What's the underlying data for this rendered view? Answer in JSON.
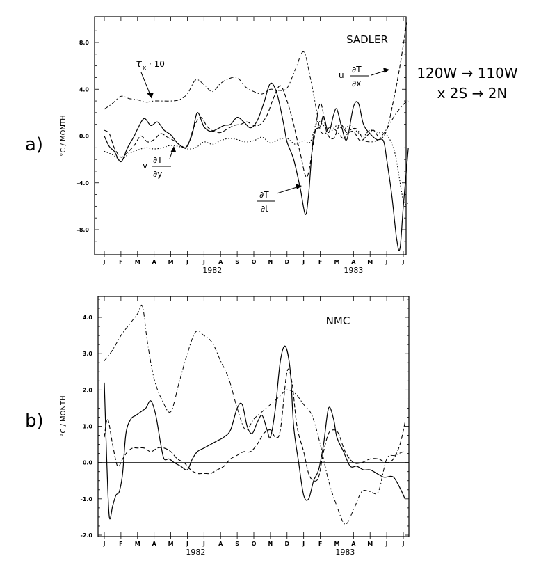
{
  "region_label": {
    "line1": "120W → 110W",
    "line2": "x 2S → 2N"
  },
  "chart_data": [
    {
      "type": "line",
      "panel_label": "a)",
      "title": "SADLER",
      "ylabel": "°C / MONTH",
      "xlabel": "",
      "ylim": [
        -10,
        10
      ],
      "y_ticks": [
        -8,
        -4,
        0,
        4,
        8
      ],
      "y_tick_labels": [
        "-8.0",
        "-4.0",
        "0.0",
        "4.0",
        "8.0"
      ],
      "x_ticks": [
        "J",
        "F",
        "M",
        "A",
        "M",
        "J",
        "J",
        "A",
        "S",
        "O",
        "N",
        "D",
        "J",
        "F",
        "M",
        "A",
        "M",
        "J",
        "J"
      ],
      "year_labels": [
        {
          "label": "1982",
          "month": 6.5
        },
        {
          "label": "1983",
          "month": 15
        }
      ],
      "zero_line": true,
      "series": [
        {
          "style": "solid",
          "annotation": "∂T/∂t",
          "x": [
            0,
            0.3,
            0.6,
            1,
            1.4,
            1.8,
            2,
            2.4,
            2.8,
            3.2,
            3.6,
            4,
            4.4,
            4.8,
            5,
            5.3,
            5.6,
            6,
            6.4,
            6.8,
            7.2,
            7.6,
            8,
            8.4,
            8.8,
            9.2,
            9.6,
            10,
            10.4,
            10.8,
            11,
            11.4,
            11.8,
            12.1,
            12.3,
            12.6,
            13,
            13.2,
            13.5,
            13.8,
            14,
            14.3,
            14.6,
            15,
            15.3,
            15.6,
            16,
            16.4,
            16.8,
            17,
            17.3,
            17.6,
            17.8,
            18,
            18.3
          ],
          "values": [
            0,
            -0.9,
            -1.3,
            -2.2,
            -1.0,
            0,
            0.6,
            1.5,
            0.9,
            1.2,
            0.5,
            0.1,
            -0.6,
            -1.0,
            -0.8,
            0.2,
            2.0,
            0.8,
            0.4,
            0.6,
            0.9,
            1.0,
            1.6,
            1.2,
            0.7,
            1.3,
            2.8,
            4.5,
            3.6,
            1.0,
            -0.5,
            -2.0,
            -4.5,
            -6.7,
            -5.0,
            0,
            0.8,
            1.7,
            0.3,
            1.8,
            2.3,
            0.7,
            -0.3,
            2.5,
            2.8,
            1.0,
            0.2,
            -0.3,
            -0.4,
            -2.0,
            -5.0,
            -8.8,
            -9.6,
            -6.0,
            -1.0
          ]
        },
        {
          "style": "dash",
          "annotation": "u ∂T/∂x",
          "x": [
            0,
            0.3,
            0.6,
            1,
            1.4,
            1.8,
            2.2,
            2.6,
            3,
            3.4,
            3.8,
            4.2,
            4.6,
            5,
            5.4,
            5.8,
            6.2,
            6.6,
            7,
            7.4,
            7.8,
            8.2,
            8.6,
            9,
            9.4,
            9.8,
            10.2,
            10.6,
            11,
            11.4,
            11.8,
            12.2,
            12.6,
            13,
            13.4,
            13.8,
            14.2,
            14.6,
            15,
            15.4,
            15.8,
            16.2,
            16.6,
            17,
            17.4,
            17.8,
            18.2
          ],
          "values": [
            0.5,
            0.2,
            -1.0,
            -1.8,
            -1.4,
            -0.8,
            0,
            -0.5,
            -0.3,
            0.2,
            -0.1,
            -0.4,
            -0.8,
            -0.9,
            0.8,
            1.6,
            0.8,
            0.4,
            0.3,
            0.6,
            0.9,
            1.0,
            1.2,
            0.9,
            1.0,
            1.8,
            3.3,
            4.3,
            3.0,
            1.0,
            -1.5,
            -3.5,
            -0.5,
            2.8,
            0.3,
            -0.2,
            1.0,
            0.3,
            0.4,
            -0.4,
            0,
            0.5,
            -0.2,
            0.5,
            3.0,
            6.0,
            9.7
          ]
        },
        {
          "style": "dashdot",
          "annotation": "τx · 10",
          "x": [
            0,
            0.5,
            1,
            1.5,
            2,
            2.5,
            3,
            3.5,
            4,
            4.5,
            5,
            5.5,
            6,
            6.5,
            7,
            7.5,
            8,
            8.5,
            9,
            9.5,
            10,
            10.5,
            11,
            11.5,
            12,
            12.4,
            12.8,
            13,
            13.3,
            13.6,
            14,
            14.4,
            14.8,
            15.2,
            15.6,
            16,
            16.5,
            17,
            17.5,
            18,
            18.3
          ],
          "values": [
            2.3,
            2.8,
            3.4,
            3.2,
            3.1,
            2.9,
            3.0,
            3.0,
            3.0,
            3.1,
            3.6,
            4.8,
            4.4,
            3.8,
            4.5,
            4.9,
            5.0,
            4.2,
            3.8,
            3.6,
            4.0,
            3.9,
            4.1,
            5.7,
            7.2,
            5.0,
            2.0,
            0.5,
            0.2,
            0.8,
            0.4,
            -0.2,
            0.5,
            0.6,
            -0.3,
            -0.5,
            -0.3,
            0.6,
            1.8,
            2.7,
            3.0
          ]
        },
        {
          "style": "dot",
          "annotation": "v ∂T/∂y",
          "x": [
            0,
            0.5,
            1,
            1.5,
            2,
            2.5,
            3,
            3.5,
            4,
            4.5,
            5,
            5.5,
            6,
            6.5,
            7,
            7.5,
            8,
            8.5,
            9,
            9.5,
            10,
            10.5,
            11,
            11.5,
            12,
            12.4,
            12.8,
            13.2,
            13.6,
            14,
            14.4,
            14.8,
            15.2,
            15.6,
            16,
            16.5,
            17,
            17.5,
            18,
            18.3
          ],
          "values": [
            -1.3,
            -1.6,
            -2.0,
            -1.5,
            -1.2,
            -1.0,
            -1.1,
            -1.0,
            -0.8,
            -0.9,
            -1.1,
            -1.0,
            -0.5,
            -0.7,
            -0.4,
            -0.2,
            -0.3,
            -0.5,
            -0.4,
            -0.1,
            -0.6,
            -0.3,
            -0.2,
            -0.7,
            -0.4,
            -0.5,
            1.2,
            0.9,
            0.4,
            0.9,
            0.6,
            0.9,
            0.4,
            0,
            0.5,
            0.3,
            0.1,
            -1.5,
            -5.5,
            -5.7
          ]
        }
      ]
    },
    {
      "type": "line",
      "panel_label": "b)",
      "title": "NMC",
      "ylabel": "°C / MONTH",
      "xlabel": "",
      "ylim": [
        -2.0,
        4.5
      ],
      "y_ticks": [
        -2,
        -1,
        0,
        1,
        2,
        3,
        4
      ],
      "y_tick_labels": [
        "-2.0",
        "-1.0",
        "0.0",
        "1.0",
        "2.0",
        "3.0",
        "4.0"
      ],
      "x_ticks": [
        "J",
        "F",
        "M",
        "A",
        "M",
        "J",
        "J",
        "A",
        "S",
        "O",
        "N",
        "D",
        "J",
        "F",
        "M",
        "A",
        "M",
        "J",
        "J"
      ],
      "year_labels": [
        {
          "label": "1982",
          "month": 5.5
        },
        {
          "label": "1983",
          "month": 14.5
        }
      ],
      "zero_line": true,
      "series": [
        {
          "style": "solid",
          "x": [
            0,
            0.15,
            0.3,
            0.5,
            0.7,
            0.9,
            1.1,
            1.3,
            1.6,
            1.9,
            2.2,
            2.5,
            2.8,
            3.1,
            3.4,
            3.6,
            3.9,
            4.2,
            4.6,
            5,
            5.3,
            5.6,
            6,
            6.4,
            6.8,
            7.2,
            7.6,
            8,
            8.3,
            8.6,
            8.9,
            9.2,
            9.5,
            9.8,
            10,
            10.3,
            10.6,
            10.9,
            11.2,
            11.4,
            11.7,
            12,
            12.3,
            12.6,
            12.9,
            13.2,
            13.5,
            13.8,
            14,
            14.4,
            14.8,
            15.2,
            15.6,
            16,
            16.4,
            16.8,
            17,
            17.4,
            17.8,
            18.1
          ],
          "values": [
            2.2,
            0,
            -1.5,
            -1.2,
            -0.9,
            -0.8,
            -0.3,
            0.8,
            1.2,
            1.3,
            1.4,
            1.5,
            1.7,
            1.3,
            0.5,
            0.1,
            0.1,
            0,
            -0.1,
            -0.2,
            0.1,
            0.3,
            0.4,
            0.5,
            0.6,
            0.7,
            0.9,
            1.5,
            1.6,
            1.0,
            0.8,
            1.1,
            1.3,
            0.9,
            0.7,
            1.5,
            2.8,
            3.2,
            2.5,
            1.0,
            0,
            -0.9,
            -1.0,
            -0.5,
            -0.2,
            0.5,
            1.5,
            1.2,
            0.7,
            0.3,
            -0.1,
            -0.1,
            -0.2,
            -0.2,
            -0.3,
            -0.4,
            -0.4,
            -0.4,
            -0.7,
            -1.0
          ]
        },
        {
          "style": "dash",
          "x": [
            0,
            0.2,
            0.5,
            0.8,
            1.1,
            1.4,
            1.7,
            2,
            2.4,
            2.8,
            3.2,
            3.6,
            4,
            4.4,
            4.8,
            5.2,
            5.6,
            6,
            6.4,
            6.8,
            7.2,
            7.6,
            8,
            8.4,
            8.8,
            9.2,
            9.6,
            10,
            10.3,
            10.6,
            11,
            11.3,
            11.6,
            12,
            12.3,
            12.6,
            12.9,
            13.2,
            13.5,
            13.8,
            14.1,
            14.5,
            15,
            15.5,
            16,
            16.5,
            17,
            17.4,
            17.8,
            18.1
          ],
          "values": [
            0.7,
            1.2,
            0.5,
            -0.1,
            0.1,
            0.3,
            0.4,
            0.4,
            0.4,
            0.3,
            0.4,
            0.4,
            0.3,
            0.1,
            0,
            -0.2,
            -0.3,
            -0.3,
            -0.3,
            -0.2,
            -0.1,
            0.1,
            0.2,
            0.3,
            0.3,
            0.5,
            0.8,
            0.9,
            0.7,
            0.9,
            2.5,
            2.2,
            1.0,
            0.3,
            -0.3,
            -0.5,
            -0.4,
            0.3,
            0.8,
            0.9,
            0.8,
            0.3,
            0,
            0,
            0.1,
            0.1,
            0,
            0.1,
            0.5,
            1.1
          ]
        },
        {
          "style": "dashdot",
          "x": [
            0,
            0.5,
            1,
            1.5,
            2,
            2.3,
            2.6,
            3,
            3.5,
            4,
            4.5,
            5,
            5.5,
            6,
            6.5,
            7,
            7.5,
            8,
            8.5,
            9,
            9.5,
            10,
            10.5,
            11,
            11.5,
            12,
            12.5,
            13,
            13.5,
            14,
            14.5,
            15,
            15.5,
            16,
            16.5,
            17,
            17.5,
            18,
            18.1
          ],
          "values": [
            2.8,
            3.1,
            3.5,
            3.8,
            4.1,
            4.3,
            3.3,
            2.3,
            1.7,
            1.4,
            2.2,
            3.0,
            3.6,
            3.5,
            3.3,
            2.8,
            2.3,
            1.5,
            0.9,
            1.2,
            1.4,
            1.6,
            1.8,
            2.0,
            1.9,
            1.6,
            1.3,
            0.5,
            -0.5,
            -1.2,
            -1.7,
            -1.3,
            -0.8,
            -0.8,
            -0.8,
            0.1,
            0.2,
            0.3,
            0.3
          ]
        }
      ]
    }
  ]
}
